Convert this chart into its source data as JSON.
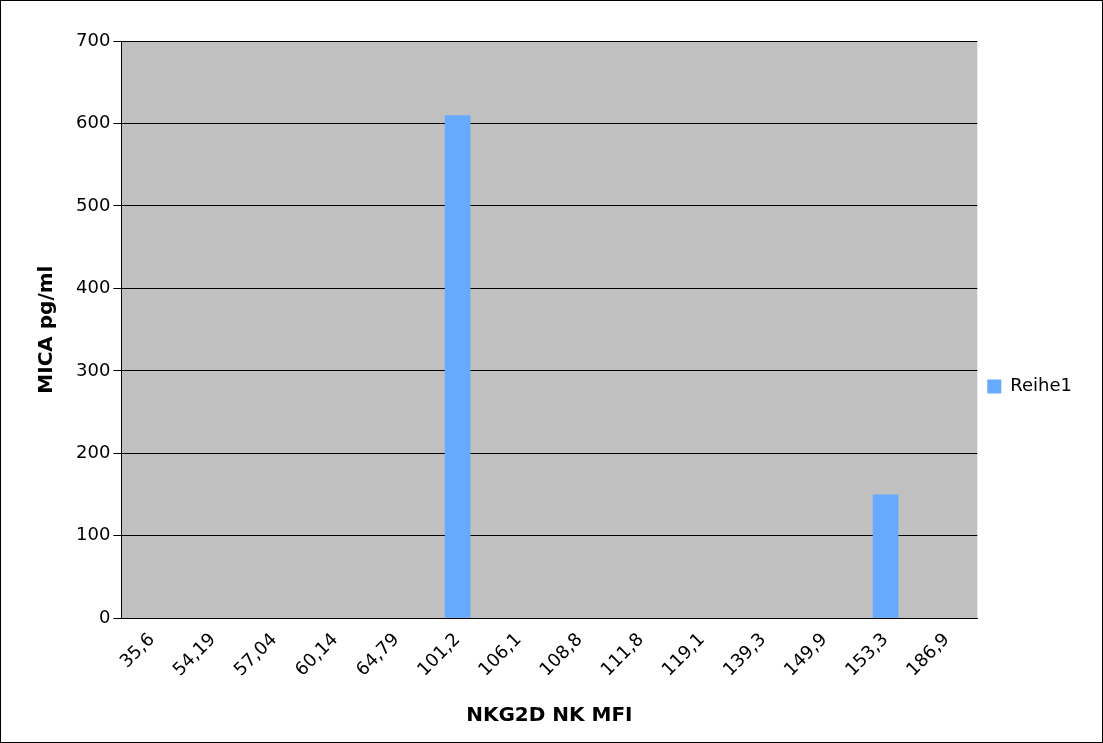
{
  "chart_data": {
    "type": "bar",
    "xlabel": "NKG2D NK MFI",
    "ylabel": "MICA pg/ml",
    "categories": [
      "35,6",
      "54,19",
      "57,04",
      "60,14",
      "64,79",
      "101,2",
      "106,1",
      "108,8",
      "111,8",
      "119,1",
      "139,3",
      "149,9",
      "153,3",
      "186,9"
    ],
    "series": [
      {
        "name": "Reihe1",
        "color": "#66aaff",
        "values": [
          null,
          null,
          null,
          null,
          null,
          610,
          null,
          null,
          null,
          null,
          null,
          null,
          150,
          null
        ]
      }
    ],
    "ylim": [
      0,
      700
    ],
    "yticks": [
      0,
      100,
      200,
      300,
      400,
      500,
      600,
      700
    ],
    "grid": "y",
    "legend": "right"
  }
}
